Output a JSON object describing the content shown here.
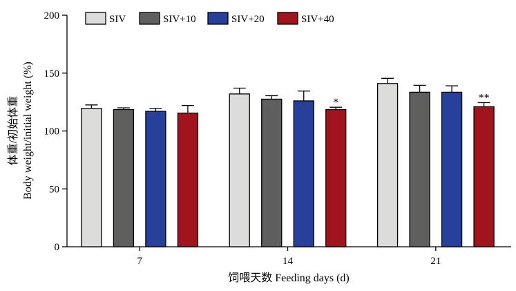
{
  "chart_data": {
    "type": "bar",
    "categories": [
      "7",
      "14",
      "21"
    ],
    "series": [
      {
        "name": "SIV",
        "color": "#dcdcda",
        "values": [
          119.5,
          132,
          141
        ],
        "errors": [
          3,
          5,
          4.5
        ]
      },
      {
        "name": "SIV+10",
        "color": "#5f5f5d",
        "values": [
          118.5,
          127.5,
          133.5
        ],
        "errors": [
          1.5,
          3,
          6
        ]
      },
      {
        "name": "SIV+20",
        "color": "#27409a",
        "values": [
          117,
          126,
          133.5
        ],
        "errors": [
          2.5,
          8.5,
          5.5
        ]
      },
      {
        "name": "SIV+40",
        "color": "#a0141d",
        "values": [
          115.5,
          118.5,
          121
        ],
        "errors": [
          6.5,
          2,
          3.5
        ]
      }
    ],
    "significance": [
      {
        "category": "14",
        "series": "SIV+40",
        "mark": "*"
      },
      {
        "category": "21",
        "series": "SIV+40",
        "mark": "**"
      }
    ],
    "ylim": [
      0,
      200
    ],
    "yticks": [
      "0",
      "50",
      "100",
      "150",
      "200"
    ],
    "xlabel": "饲喂天数 Feeding days (d)",
    "ylabel_cn": "体重/初始体重",
    "ylabel_en": "Body weight/initial weight (%)",
    "legend_position": "top",
    "grid": false
  }
}
